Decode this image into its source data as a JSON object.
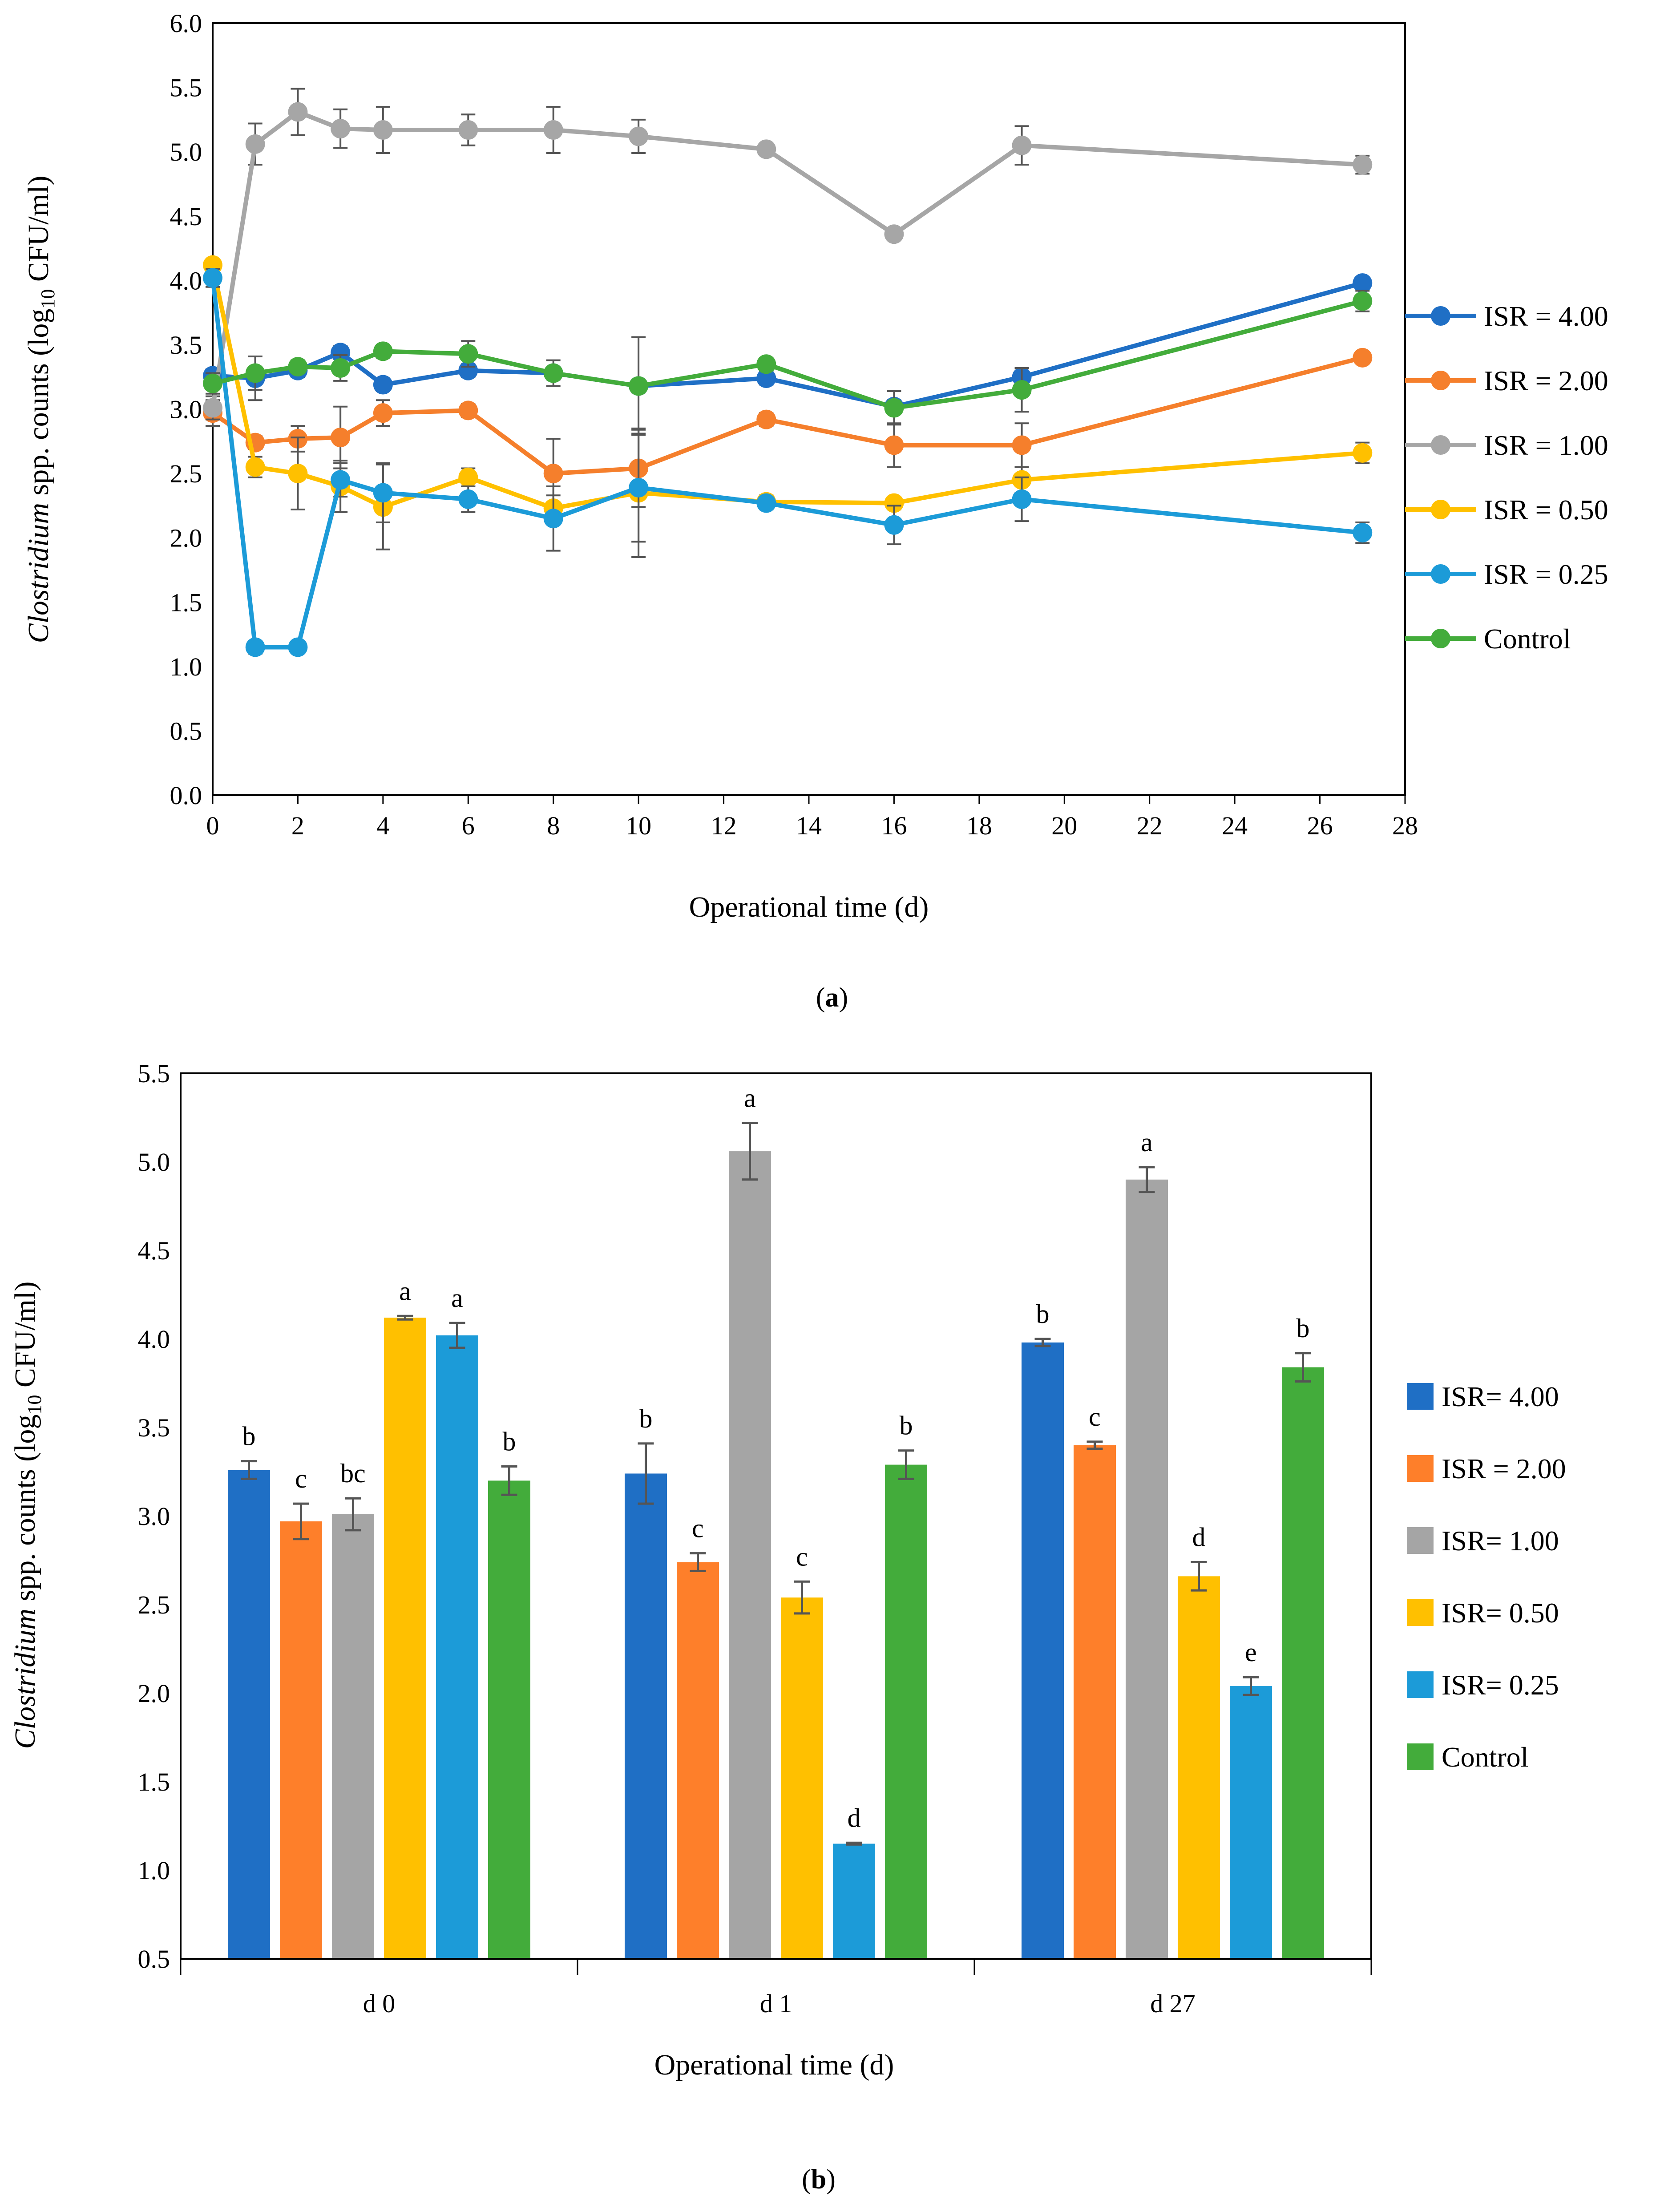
{
  "chart_data": [
    {
      "type": "line",
      "panel_label_open": "(",
      "panel_label": "a",
      "panel_label_close": ")",
      "ylabel_prefix": "Clostridium",
      "ylabel_mid": " spp. counts (log",
      "ylabel_sub": "10",
      "ylabel_suffix": " CFU/ml)",
      "xlabel": "Operational time (d)",
      "xlim": [
        0,
        28
      ],
      "ylim": [
        0.0,
        6.0
      ],
      "xticks": [
        "0",
        "2",
        "4",
        "6",
        "8",
        "10",
        "12",
        "14",
        "16",
        "18",
        "20",
        "22",
        "24",
        "26",
        "28"
      ],
      "yticks": [
        "0.0",
        "0.5",
        "1.0",
        "1.5",
        "2.0",
        "2.5",
        "3.0",
        "3.5",
        "4.0",
        "4.5",
        "5.0",
        "5.5",
        "6.0"
      ],
      "x": [
        0,
        1,
        2,
        3,
        4,
        6,
        8,
        10,
        13,
        16,
        19,
        27
      ],
      "series": [
        {
          "name": "ISR = 4.00",
          "color": "#1f6fc5",
          "values": [
            3.26,
            3.24,
            3.3,
            3.44,
            3.19,
            3.3,
            3.28,
            3.18,
            3.24,
            3.02,
            3.25,
            3.98
          ],
          "errors": [
            0.05,
            0.17,
            0.05,
            0.05,
            0.05,
            0.05,
            0.05,
            0.05,
            0.05,
            0.05,
            0.05,
            0.03
          ]
        },
        {
          "name": "ISR = 2.00",
          "color": "#f57f2c",
          "values": [
            2.97,
            2.74,
            2.77,
            2.78,
            2.97,
            2.99,
            2.5,
            2.54,
            2.92,
            2.72,
            2.72,
            3.4
          ],
          "errors": [
            0.1,
            0.05,
            0.1,
            0.24,
            0.1,
            0.05,
            0.27,
            0.3,
            0.05,
            0.17,
            0.17,
            0.02
          ]
        },
        {
          "name": "ISR = 1.00",
          "color": "#a6a6a6",
          "values": [
            3.01,
            5.06,
            5.31,
            5.18,
            5.17,
            5.17,
            5.17,
            5.12,
            5.02,
            4.36,
            5.05,
            4.9
          ],
          "errors": [
            0.09,
            0.16,
            0.18,
            0.15,
            0.18,
            0.12,
            0.18,
            0.13,
            0.03,
            0.03,
            0.15,
            0.07
          ]
        },
        {
          "name": "ISR = 0.50",
          "color": "#ffc000",
          "values": [
            4.12,
            2.55,
            2.5,
            2.4,
            2.24,
            2.47,
            2.23,
            2.35,
            2.28,
            2.27,
            2.45,
            2.66
          ],
          "errors": [
            0.02,
            0.08,
            0.28,
            0.2,
            0.33,
            0.07,
            0.1,
            0.5,
            0.05,
            0.05,
            0.1,
            0.08
          ]
        },
        {
          "name": "ISR = 0.25",
          "color": "#1c9bd8",
          "values": [
            4.02,
            1.15,
            1.15,
            2.45,
            2.35,
            2.3,
            2.15,
            2.39,
            2.27,
            2.1,
            2.3,
            2.04
          ],
          "errors": [
            0.07,
            0.05,
            0.03,
            0.13,
            0.23,
            0.1,
            0.25,
            0.42,
            0.05,
            0.15,
            0.17,
            0.08
          ]
        },
        {
          "name": "Control",
          "color": "#43ac3b",
          "values": [
            3.2,
            3.28,
            3.33,
            3.32,
            3.45,
            3.43,
            3.28,
            3.18,
            3.35,
            3.01,
            3.15,
            3.84
          ],
          "errors": [
            0.08,
            0.13,
            0.05,
            0.1,
            0.05,
            0.1,
            0.1,
            0.38,
            0.05,
            0.13,
            0.17,
            0.08
          ]
        }
      ]
    },
    {
      "type": "bar",
      "panel_label_open": "(",
      "panel_label": "b",
      "panel_label_close": ")",
      "ylabel_prefix": "Clostridium",
      "ylabel_mid": " spp. counts (log",
      "ylabel_sub": "10",
      "ylabel_suffix": " CFU/ml)",
      "xlabel": "Operational  time (d)",
      "ylim": [
        0.5,
        5.5
      ],
      "yticks": [
        "0.5",
        "1.0",
        "1.5",
        "2.0",
        "2.5",
        "3.0",
        "3.5",
        "4.0",
        "4.5",
        "5.0",
        "5.5"
      ],
      "categories": [
        "d 0",
        "d 1",
        "d 27"
      ],
      "series": [
        {
          "name": "ISR= 4.00",
          "color": "#1f6fc5",
          "values": [
            3.26,
            3.24,
            3.98
          ],
          "errors": [
            0.05,
            0.17,
            0.02
          ],
          "letters": [
            "b",
            "b",
            "b"
          ]
        },
        {
          "name": "ISR = 2.00",
          "color": "#fe7f2a",
          "values": [
            2.97,
            2.74,
            3.4
          ],
          "errors": [
            0.1,
            0.05,
            0.02
          ],
          "letters": [
            "c",
            "c",
            "c"
          ]
        },
        {
          "name": "ISR= 1.00",
          "color": "#a5a5a5",
          "values": [
            3.01,
            5.06,
            4.9
          ],
          "errors": [
            0.09,
            0.16,
            0.07
          ],
          "letters": [
            "bc",
            "a",
            "a"
          ]
        },
        {
          "name": "ISR= 0.50",
          "color": "#ffc000",
          "values": [
            4.12,
            2.54,
            2.66
          ],
          "errors": [
            0.01,
            0.09,
            0.08
          ],
          "letters": [
            "a",
            "c",
            "d"
          ]
        },
        {
          "name": "ISR= 0.25",
          "color": "#1c9bd8",
          "values": [
            4.02,
            1.15,
            2.04
          ],
          "errors": [
            0.07,
            0.005,
            0.05
          ],
          "letters": [
            "a",
            "d",
            "e"
          ]
        },
        {
          "name": "Control",
          "color": "#43ac3b",
          "values": [
            3.2,
            3.29,
            3.84
          ],
          "errors": [
            0.08,
            0.08,
            0.08
          ],
          "letters": [
            "b",
            "b",
            "b"
          ]
        }
      ]
    }
  ]
}
